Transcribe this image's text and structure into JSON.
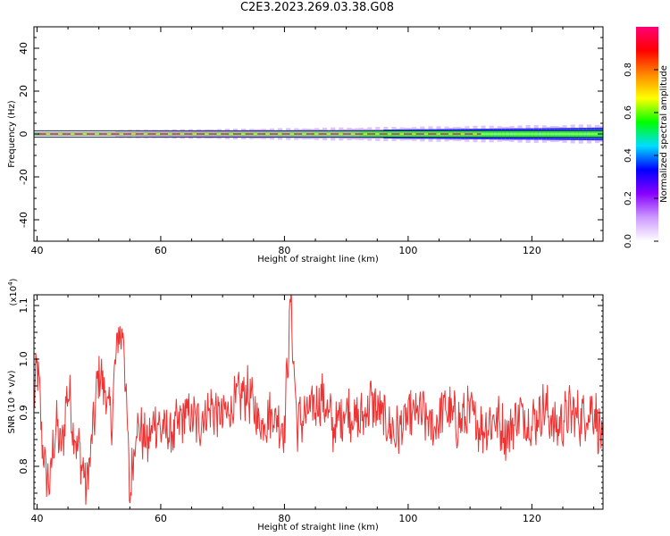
{
  "title": "C2E3.2023.269.03.38.G08",
  "chart_data": [
    {
      "type": "heatmap",
      "xlabel": "Height of straight line (km)",
      "ylabel": "Frequency (Hz)",
      "xlim": [
        39.5,
        131.5
      ],
      "ylim": [
        -50,
        50
      ],
      "x_ticks": [
        40,
        60,
        80,
        100,
        120
      ],
      "y_ticks": [
        -40,
        -20,
        0,
        20,
        40
      ],
      "colorbar": {
        "label": "Normalized spectral amplitude",
        "range": [
          0,
          1
        ],
        "ticks": [
          "0.0",
          "0.2",
          "0.4",
          "0.6",
          "0.8"
        ],
        "colors": [
          "#ffffff",
          "#cc99ff",
          "#8800ff",
          "#0000ff",
          "#00ddff",
          "#00ff00",
          "#ffff00",
          "#ff8800",
          "#ff0000",
          "#ff0077"
        ]
      },
      "band": {
        "center_hz": 0,
        "core_halfwidth_hz": 0.7,
        "spread_start_halfwidth_hz": 1.2,
        "spread_end_halfwidth_hz": 4,
        "spread_onset_km": 52
      }
    },
    {
      "type": "line",
      "xlabel": "Height of straight line (km)",
      "ylabel": "SNR (10 * v/v)",
      "y_exponent": "(x10",
      "y_exponent_power": "4",
      "y_exponent_close": ")",
      "xlim": [
        39.5,
        131.5
      ],
      "ylim": [
        0.72,
        1.12
      ],
      "x_ticks": [
        40,
        60,
        80,
        100,
        120
      ],
      "y_ticks": [
        0.8,
        0.9,
        1.0,
        1.1
      ],
      "y_tick_labels": [
        "0.8",
        "0.9",
        "1.0",
        "1.1"
      ],
      "color": "#ee3333",
      "series": [
        {
          "x": [
            39.5,
            40,
            41,
            42,
            43,
            44,
            45,
            46,
            47,
            48,
            49,
            50,
            51,
            52,
            53,
            54,
            55,
            56,
            57,
            58,
            59,
            60,
            62,
            64,
            66,
            68,
            70,
            72,
            74,
            76,
            78,
            80,
            81,
            82,
            84,
            86,
            88,
            90,
            92,
            94,
            96,
            98,
            100,
            102,
            104,
            106,
            108,
            110,
            112,
            114,
            116,
            118,
            120,
            122,
            124,
            126,
            128,
            130,
            131.5
          ],
          "values": [
            0.9,
            1.0,
            0.82,
            0.76,
            0.88,
            0.83,
            0.95,
            0.86,
            0.82,
            0.76,
            0.86,
            0.98,
            0.94,
            0.88,
            1.04,
            1.05,
            0.74,
            0.88,
            0.86,
            0.84,
            0.89,
            0.87,
            0.86,
            0.9,
            0.88,
            0.91,
            0.89,
            0.92,
            0.94,
            0.88,
            0.9,
            0.87,
            1.11,
            0.88,
            0.9,
            0.93,
            0.87,
            0.91,
            0.88,
            0.92,
            0.89,
            0.86,
            0.89,
            0.9,
            0.87,
            0.91,
            0.88,
            0.9,
            0.87,
            0.89,
            0.86,
            0.9,
            0.88,
            0.91,
            0.87,
            0.9,
            0.89,
            0.91,
            0.84
          ]
        }
      ]
    }
  ]
}
